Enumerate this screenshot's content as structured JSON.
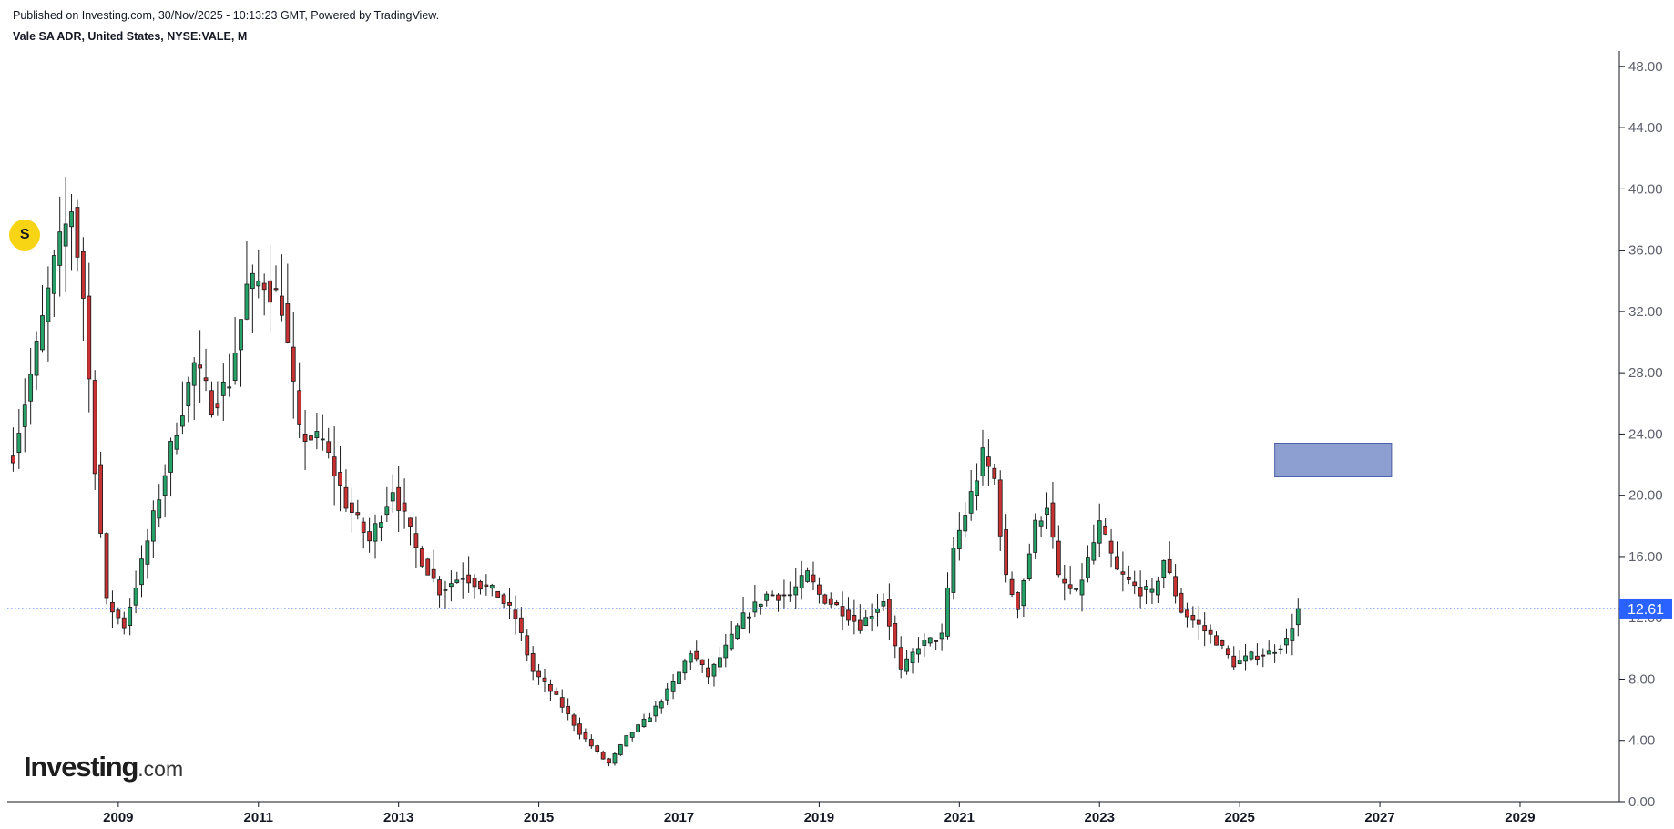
{
  "header": {
    "published": "Published on Investing.com, 30/Nov/2025 - 10:13:23 GMT, Powered by TradingView.",
    "symbol": "Vale SA ADR, United States, NYSE:VALE, M"
  },
  "logo": {
    "brand": "Investing",
    "suffix": ".com"
  },
  "marker": {
    "label": "S"
  },
  "chart_data": {
    "type": "candlestick",
    "interval": "M",
    "x_axis": {
      "range": [
        "2007-06",
        "2030-06"
      ],
      "ticks": [
        "2009",
        "2011",
        "2013",
        "2015",
        "2017",
        "2019",
        "2021",
        "2023",
        "2025",
        "2027",
        "2029"
      ]
    },
    "y_axis": {
      "range": [
        0,
        49
      ],
      "position": "right",
      "ticks": [
        "0.00",
        "4.00",
        "8.00",
        "12.00",
        "16.00",
        "20.00",
        "24.00",
        "28.00",
        "32.00",
        "36.00",
        "40.00",
        "44.00",
        "48.00"
      ]
    },
    "last_price": {
      "value": 12.61,
      "label": "12.61",
      "color": "#2962ff"
    },
    "colors": {
      "up": "#26a269",
      "down": "#c83232",
      "outline": "#1a1a1a",
      "box": "#8c9fd0"
    },
    "box_annotation": {
      "x_from": "2025-07",
      "x_to": "2027-03",
      "y_from": 21.2,
      "y_to": 23.4
    },
    "marker_position": {
      "x": "2007-09",
      "y": 37.0
    },
    "anchors": [
      [
        "2007-07",
        22.8
      ],
      [
        "2007-11",
        29.5
      ],
      [
        "2008-02",
        35.0
      ],
      [
        "2008-05",
        38.8
      ],
      [
        "2008-07",
        33.0
      ],
      [
        "2008-09",
        22.0
      ],
      [
        "2008-11",
        13.0
      ],
      [
        "2009-02",
        11.5
      ],
      [
        "2009-05",
        15.5
      ],
      [
        "2009-08",
        20.0
      ],
      [
        "2009-11",
        24.5
      ],
      [
        "2010-02",
        28.5
      ],
      [
        "2010-05",
        26.0
      ],
      [
        "2010-08",
        27.5
      ],
      [
        "2010-11",
        33.5
      ],
      [
        "2011-02",
        34.0
      ],
      [
        "2011-05",
        32.5
      ],
      [
        "2011-08",
        24.0
      ],
      [
        "2011-12",
        23.5
      ],
      [
        "2012-04",
        19.5
      ],
      [
        "2012-08",
        17.0
      ],
      [
        "2012-12",
        20.5
      ],
      [
        "2013-04",
        16.5
      ],
      [
        "2013-08",
        13.8
      ],
      [
        "2013-12",
        14.8
      ],
      [
        "2014-06",
        13.5
      ],
      [
        "2014-09",
        12.0
      ],
      [
        "2014-12",
        8.5
      ],
      [
        "2015-04",
        6.8
      ],
      [
        "2015-08",
        4.5
      ],
      [
        "2015-12",
        2.8
      ],
      [
        "2016-01",
        2.5
      ],
      [
        "2016-04",
        4.2
      ],
      [
        "2016-08",
        5.6
      ],
      [
        "2016-12",
        7.7
      ],
      [
        "2017-03",
        9.8
      ],
      [
        "2017-06",
        8.2
      ],
      [
        "2017-09",
        10.0
      ],
      [
        "2017-12",
        12.0
      ],
      [
        "2018-04",
        13.5
      ],
      [
        "2018-08",
        13.5
      ],
      [
        "2018-11",
        14.8
      ],
      [
        "2019-01",
        13.5
      ],
      [
        "2019-05",
        12.5
      ],
      [
        "2019-08",
        11.5
      ],
      [
        "2019-12",
        13.2
      ],
      [
        "2020-03",
        8.5
      ],
      [
        "2020-06",
        10.2
      ],
      [
        "2020-10",
        10.8
      ],
      [
        "2020-12",
        16.5
      ],
      [
        "2021-03",
        20.0
      ],
      [
        "2021-05",
        22.5
      ],
      [
        "2021-07",
        21.0
      ],
      [
        "2021-09",
        14.5
      ],
      [
        "2021-11",
        12.8
      ],
      [
        "2022-02",
        18.0
      ],
      [
        "2022-04",
        19.5
      ],
      [
        "2022-06",
        14.5
      ],
      [
        "2022-09",
        13.5
      ],
      [
        "2023-01",
        18.0
      ],
      [
        "2023-04",
        15.0
      ],
      [
        "2023-07",
        14.0
      ],
      [
        "2023-10",
        13.5
      ],
      [
        "2023-12",
        15.8
      ],
      [
        "2024-03",
        12.5
      ],
      [
        "2024-06",
        11.5
      ],
      [
        "2024-09",
        10.5
      ],
      [
        "2024-12",
        9.0
      ],
      [
        "2025-03",
        9.5
      ],
      [
        "2025-06",
        9.7
      ],
      [
        "2025-09",
        10.5
      ],
      [
        "2025-11",
        12.61
      ]
    ]
  }
}
